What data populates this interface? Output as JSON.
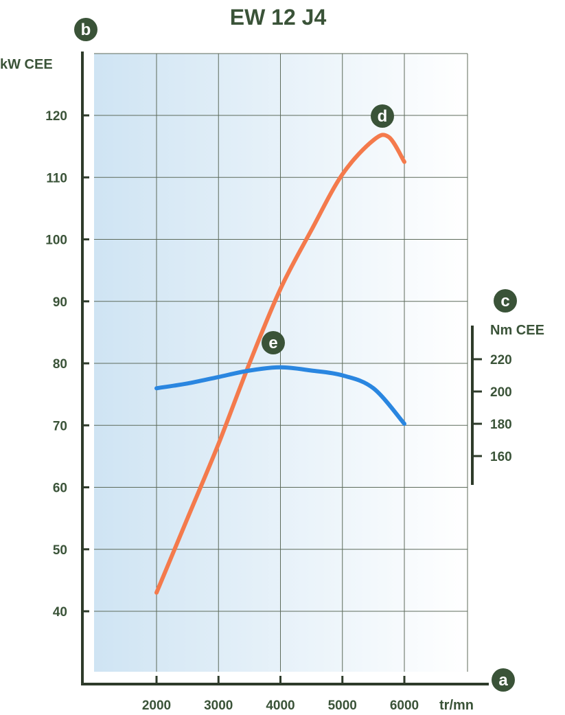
{
  "chart_data": {
    "type": "line",
    "title": "EW 12 J4",
    "x_axis": {
      "label": "tr/mn",
      "marker": "a",
      "range": [
        1000,
        6800
      ],
      "ticks": [
        2000,
        3000,
        4000,
        5000,
        6000
      ]
    },
    "y_axis_left": {
      "label": "kW CEE",
      "marker": "b",
      "range": [
        30,
        130
      ],
      "ticks": [
        40,
        50,
        60,
        70,
        80,
        90,
        100,
        110,
        120
      ]
    },
    "y_axis_right": {
      "label": "Nm CEE",
      "marker": "c",
      "range": [
        150,
        240
      ],
      "ticks": [
        160,
        180,
        200,
        220
      ]
    },
    "grid": true,
    "series": [
      {
        "name": "d",
        "unit_axis": "left",
        "color": "#f47a4c",
        "x": [
          2000,
          2500,
          3000,
          3500,
          4000,
          4500,
          5000,
          5500,
          5750,
          6000
        ],
        "y": [
          43,
          55,
          67,
          80,
          92,
          101.5,
          110.5,
          116,
          116.5,
          112.5
        ]
      },
      {
        "name": "e",
        "unit_axis": "right",
        "color": "#2a86e0",
        "x": [
          2000,
          2500,
          3000,
          3500,
          4000,
          4500,
          5000,
          5500,
          6000
        ],
        "y": [
          202,
          205,
          209,
          213,
          215,
          213,
          210,
          202,
          180
        ]
      }
    ],
    "colors": {
      "text": "#3a5338",
      "axis": "#2e3b2a",
      "grid": "#5c6a5a",
      "plot_gradient_start": "#cfe4f3",
      "plot_gradient_end": "#ffffff"
    }
  }
}
